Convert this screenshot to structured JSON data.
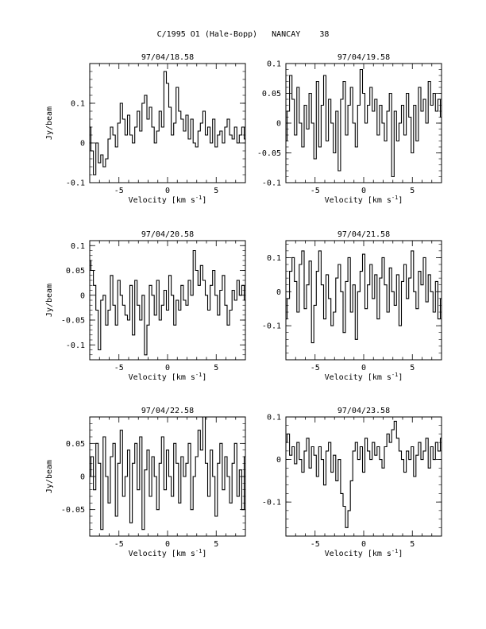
{
  "page_title": "C/1995 O1 (Hale-Bopp)   NANCAY    38",
  "chart_data": [
    {
      "type": "line",
      "title": "97/04/18.58",
      "xlabel": "Velocity [km s-1]",
      "ylabel": "Jy/beam",
      "xlim": [
        -8,
        8
      ],
      "ylim": [
        -0.1,
        0.2
      ],
      "xticks": [
        -5,
        0,
        5
      ],
      "xtick_labels": [
        "-5",
        "0",
        "5"
      ],
      "yticks": [
        -0.1,
        0,
        0.1
      ],
      "ytick_labels": [
        "-0.1",
        "0",
        "0.1"
      ],
      "grid": false,
      "series": [
        {
          "x": [
            -8,
            -7.75,
            -7.5,
            -7.25,
            -7,
            -6.75,
            -6.5,
            -6.25,
            -6,
            -5.75,
            -5.5,
            -5.25,
            -5,
            -4.75,
            -4.5,
            -4.25,
            -4,
            -3.75,
            -3.5,
            -3.25,
            -3,
            -2.75,
            -2.5,
            -2.25,
            -2,
            -1.75,
            -1.5,
            -1.25,
            -1,
            -0.75,
            -0.5,
            -0.25,
            0,
            0.25,
            0.5,
            0.75,
            1,
            1.25,
            1.5,
            1.75,
            2,
            2.25,
            2.5,
            2.75,
            3,
            3.25,
            3.5,
            3.75,
            4,
            4.25,
            4.5,
            4.75,
            5,
            5.25,
            5.5,
            5.75,
            6,
            6.25,
            6.5,
            6.75,
            7,
            7.25,
            7.5,
            7.75,
            8
          ],
          "y": [
            0.04,
            -0.02,
            -0.08,
            0.0,
            -0.05,
            -0.03,
            -0.06,
            -0.04,
            0.01,
            0.04,
            0.02,
            -0.01,
            0.05,
            0.1,
            0.06,
            0.02,
            0.07,
            0.02,
            0.0,
            0.04,
            0.08,
            0.03,
            0.1,
            0.12,
            0.06,
            0.09,
            0.04,
            0.0,
            0.03,
            0.08,
            0.04,
            0.18,
            0.15,
            0.09,
            0.02,
            0.05,
            0.14,
            0.08,
            0.06,
            0.03,
            0.07,
            0.01,
            0.06,
            0.0,
            -0.01,
            0.03,
            0.05,
            0.08,
            0.02,
            0.04,
            0.0,
            0.06,
            -0.01,
            0.02,
            0.03,
            0.0,
            0.04,
            0.06,
            0.02,
            0.01,
            0.04,
            0.0,
            0.02,
            0.04,
            0.01
          ]
        }
      ]
    },
    {
      "type": "line",
      "title": "97/04/19.58",
      "xlabel": "Velocity [km s-1]",
      "ylabel": "",
      "xlim": [
        -8,
        8
      ],
      "ylim": [
        -0.1,
        0.1
      ],
      "xticks": [
        -5,
        0,
        5
      ],
      "xtick_labels": [
        "-5",
        "0",
        "5"
      ],
      "yticks": [
        -0.1,
        -0.05,
        0,
        0.05,
        0.1
      ],
      "ytick_labels": [
        "-0.1",
        "-0.05",
        "0",
        "0.05",
        "0.1"
      ],
      "grid": false,
      "series": [
        {
          "x": [
            -8,
            -7.75,
            -7.5,
            -7.25,
            -7,
            -6.75,
            -6.5,
            -6.25,
            -6,
            -5.75,
            -5.5,
            -5.25,
            -5,
            -4.75,
            -4.5,
            -4.25,
            -4,
            -3.75,
            -3.5,
            -3.25,
            -3,
            -2.75,
            -2.5,
            -2.25,
            -2,
            -1.75,
            -1.5,
            -1.25,
            -1,
            -0.75,
            -0.5,
            -0.25,
            0,
            0.25,
            0.5,
            0.75,
            1,
            1.25,
            1.5,
            1.75,
            2,
            2.25,
            2.5,
            2.75,
            3,
            3.25,
            3.5,
            3.75,
            4,
            4.25,
            4.5,
            4.75,
            5,
            5.25,
            5.5,
            5.75,
            6,
            6.25,
            6.5,
            6.75,
            7,
            7.25,
            7.5,
            7.75,
            8
          ],
          "y": [
            -0.03,
            0.02,
            0.08,
            0.04,
            -0.02,
            0.06,
            0.0,
            -0.04,
            0.03,
            -0.01,
            0.05,
            0.0,
            -0.06,
            0.07,
            -0.04,
            0.03,
            0.08,
            -0.03,
            0.04,
            0.0,
            -0.05,
            0.02,
            -0.08,
            0.04,
            0.07,
            -0.02,
            0.03,
            0.06,
            0.0,
            -0.04,
            0.03,
            0.09,
            0.05,
            0.0,
            0.03,
            0.06,
            0.02,
            0.04,
            -0.02,
            0.03,
            0.0,
            -0.03,
            0.02,
            0.05,
            -0.09,
            0.02,
            -0.03,
            0.0,
            0.03,
            -0.02,
            0.05,
            0.01,
            -0.05,
            0.03,
            -0.03,
            0.06,
            0.02,
            0.04,
            0.0,
            0.07,
            0.03,
            0.05,
            0.02,
            0.04,
            0.01
          ]
        }
      ]
    },
    {
      "type": "line",
      "title": "97/04/20.58",
      "xlabel": "Velocity [km s-1]",
      "ylabel": "Jy/beam",
      "xlim": [
        -8,
        8
      ],
      "ylim": [
        -0.13,
        0.11
      ],
      "xticks": [
        -5,
        0,
        5
      ],
      "xtick_labels": [
        "-5",
        "0",
        "5"
      ],
      "yticks": [
        -0.1,
        -0.05,
        0,
        0.05,
        0.1
      ],
      "ytick_labels": [
        "-0.1",
        "-0.05",
        "0",
        "0.05",
        "0.1"
      ],
      "grid": false,
      "series": [
        {
          "x": [
            -8,
            -7.75,
            -7.5,
            -7.25,
            -7,
            -6.75,
            -6.5,
            -6.25,
            -6,
            -5.75,
            -5.5,
            -5.25,
            -5,
            -4.75,
            -4.5,
            -4.25,
            -4,
            -3.75,
            -3.5,
            -3.25,
            -3,
            -2.75,
            -2.5,
            -2.25,
            -2,
            -1.75,
            -1.5,
            -1.25,
            -1,
            -0.75,
            -0.5,
            -0.25,
            0,
            0.25,
            0.5,
            0.75,
            1,
            1.25,
            1.5,
            1.75,
            2,
            2.25,
            2.5,
            2.75,
            3,
            3.25,
            3.5,
            3.75,
            4,
            4.25,
            4.5,
            4.75,
            5,
            5.25,
            5.5,
            5.75,
            6,
            6.25,
            6.5,
            6.75,
            7,
            7.25,
            7.5,
            7.75,
            8
          ],
          "y": [
            0.07,
            0.05,
            0.02,
            -0.03,
            -0.11,
            -0.01,
            0.0,
            -0.06,
            -0.03,
            0.04,
            -0.02,
            -0.06,
            0.03,
            0.0,
            -0.02,
            -0.04,
            -0.05,
            0.02,
            -0.08,
            0.03,
            -0.02,
            -0.05,
            0.0,
            -0.12,
            -0.06,
            0.02,
            0.0,
            -0.04,
            0.03,
            -0.05,
            -0.02,
            0.01,
            -0.03,
            0.04,
            0.0,
            -0.06,
            -0.01,
            -0.03,
            0.02,
            -0.01,
            -0.02,
            0.03,
            0.0,
            0.09,
            0.05,
            0.02,
            0.06,
            0.03,
            0.0,
            -0.03,
            0.02,
            0.05,
            0.0,
            -0.04,
            0.01,
            0.04,
            -0.02,
            -0.06,
            -0.03,
            0.01,
            -0.01,
            0.03,
            0.0,
            0.02,
            -0.01
          ]
        }
      ]
    },
    {
      "type": "line",
      "title": "97/04/21.58",
      "xlabel": "Velocity [km s-1]",
      "ylabel": "",
      "xlim": [
        -8,
        8
      ],
      "ylim": [
        -0.2,
        0.15
      ],
      "xticks": [
        -5,
        0,
        5
      ],
      "xtick_labels": [
        "-5",
        "0",
        "5"
      ],
      "yticks": [
        -0.1,
        0,
        0.1
      ],
      "ytick_labels": [
        "-0.1",
        "0",
        "0.1"
      ],
      "grid": false,
      "series": [
        {
          "x": [
            -8,
            -7.75,
            -7.5,
            -7.25,
            -7,
            -6.75,
            -6.5,
            -6.25,
            -6,
            -5.75,
            -5.5,
            -5.25,
            -5,
            -4.75,
            -4.5,
            -4.25,
            -4,
            -3.75,
            -3.5,
            -3.25,
            -3,
            -2.75,
            -2.5,
            -2.25,
            -2,
            -1.75,
            -1.5,
            -1.25,
            -1,
            -0.75,
            -0.5,
            -0.25,
            0,
            0.25,
            0.5,
            0.75,
            1,
            1.25,
            1.5,
            1.75,
            2,
            2.25,
            2.5,
            2.75,
            3,
            3.25,
            3.5,
            3.75,
            4,
            4.25,
            4.5,
            4.75,
            5,
            5.25,
            5.5,
            5.75,
            6,
            6.25,
            6.5,
            6.75,
            7,
            7.25,
            7.5,
            7.75,
            8
          ],
          "y": [
            -0.08,
            -0.02,
            0.06,
            0.1,
            0.03,
            -0.06,
            0.08,
            0.12,
            -0.05,
            0.02,
            0.09,
            -0.15,
            -0.04,
            0.06,
            0.12,
            0.02,
            -0.08,
            0.05,
            -0.02,
            -0.1,
            -0.06,
            0.04,
            0.08,
            0.0,
            -0.12,
            0.03,
            0.1,
            -0.06,
            0.02,
            -0.14,
            0.0,
            0.06,
            0.11,
            -0.05,
            0.02,
            0.08,
            -0.02,
            0.05,
            -0.08,
            0.04,
            0.1,
            0.02,
            -0.06,
            0.07,
            0.0,
            -0.04,
            0.05,
            -0.1,
            0.03,
            0.08,
            -0.02,
            0.04,
            0.12,
            0.0,
            -0.05,
            0.06,
            0.02,
            0.1,
            -0.03,
            0.05,
            0.0,
            -0.06,
            0.03,
            -0.08,
            -0.02
          ]
        }
      ]
    },
    {
      "type": "line",
      "title": "97/04/22.58",
      "xlabel": "Velocity [km s-1]",
      "ylabel": "Jy/beam",
      "xlim": [
        -8,
        8
      ],
      "ylim": [
        -0.09,
        0.09
      ],
      "xticks": [
        -5,
        0,
        5
      ],
      "xtick_labels": [
        "-5",
        "0",
        "5"
      ],
      "yticks": [
        -0.05,
        0,
        0.05
      ],
      "ytick_labels": [
        "-0.05",
        "0",
        "0.05"
      ],
      "grid": false,
      "series": [
        {
          "x": [
            -8,
            -7.75,
            -7.5,
            -7.25,
            -7,
            -6.75,
            -6.5,
            -6.25,
            -6,
            -5.75,
            -5.5,
            -5.25,
            -5,
            -4.75,
            -4.5,
            -4.25,
            -4,
            -3.75,
            -3.5,
            -3.25,
            -3,
            -2.75,
            -2.5,
            -2.25,
            -2,
            -1.75,
            -1.5,
            -1.25,
            -1,
            -0.75,
            -0.5,
            -0.25,
            0,
            0.25,
            0.5,
            0.75,
            1,
            1.25,
            1.5,
            1.75,
            2,
            2.25,
            2.5,
            2.75,
            3,
            3.25,
            3.5,
            3.75,
            4,
            4.25,
            4.5,
            4.75,
            5,
            5.25,
            5.5,
            5.75,
            6,
            6.25,
            6.5,
            6.75,
            7,
            7.25,
            7.5,
            7.75,
            8
          ],
          "y": [
            0.0,
            0.03,
            -0.02,
            0.05,
            0.02,
            -0.08,
            0.06,
            0.0,
            -0.04,
            0.03,
            0.05,
            -0.06,
            0.02,
            0.07,
            -0.03,
            0.0,
            0.04,
            -0.07,
            0.02,
            0.05,
            -0.02,
            0.06,
            -0.08,
            0.01,
            0.04,
            -0.03,
            0.03,
            0.0,
            -0.05,
            0.02,
            0.06,
            -0.02,
            0.04,
            0.0,
            -0.03,
            0.05,
            0.02,
            -0.04,
            0.03,
            0.0,
            0.02,
            0.05,
            -0.05,
            0.0,
            0.03,
            0.07,
            0.04,
            0.09,
            0.02,
            -0.03,
            0.04,
            0.0,
            -0.06,
            0.02,
            0.05,
            -0.02,
            0.03,
            0.0,
            -0.04,
            0.02,
            0.05,
            -0.03,
            0.01,
            -0.05,
            0.03
          ]
        }
      ]
    },
    {
      "type": "line",
      "title": "97/04/23.58",
      "xlabel": "Velocity [km s-1]",
      "ylabel": "",
      "xlim": [
        -8,
        8
      ],
      "ylim": [
        -0.18,
        0.1
      ],
      "xticks": [
        -5,
        0,
        5
      ],
      "xtick_labels": [
        "-5",
        "0",
        "5"
      ],
      "yticks": [
        -0.1,
        0,
        0.1
      ],
      "ytick_labels": [
        "-0.1",
        "0",
        "0.1"
      ],
      "grid": false,
      "series": [
        {
          "x": [
            -8,
            -7.75,
            -7.5,
            -7.25,
            -7,
            -6.75,
            -6.5,
            -6.25,
            -6,
            -5.75,
            -5.5,
            -5.25,
            -5,
            -4.75,
            -4.5,
            -4.25,
            -4,
            -3.75,
            -3.5,
            -3.25,
            -3,
            -2.75,
            -2.5,
            -2.25,
            -2,
            -1.75,
            -1.5,
            -1.25,
            -1,
            -0.75,
            -0.5,
            -0.25,
            0,
            0.25,
            0.5,
            0.75,
            1,
            1.25,
            1.5,
            1.75,
            2,
            2.25,
            2.5,
            2.75,
            3,
            3.25,
            3.5,
            3.75,
            4,
            4.25,
            4.5,
            4.75,
            5,
            5.25,
            5.5,
            5.75,
            6,
            6.25,
            6.5,
            6.75,
            7,
            7.25,
            7.5,
            7.75,
            8
          ],
          "y": [
            0.04,
            0.06,
            0.01,
            0.03,
            -0.01,
            0.04,
            0.0,
            -0.03,
            0.02,
            0.05,
            -0.02,
            0.03,
            0.01,
            -0.04,
            0.03,
            0.0,
            -0.06,
            0.02,
            0.04,
            -0.03,
            0.01,
            -0.05,
            0.0,
            -0.08,
            -0.11,
            -0.16,
            -0.12,
            -0.05,
            0.02,
            0.04,
            0.0,
            0.03,
            -0.03,
            0.05,
            0.02,
            0.0,
            0.04,
            0.01,
            0.03,
            0.0,
            -0.02,
            0.03,
            0.06,
            0.04,
            0.07,
            0.09,
            0.05,
            0.02,
            0.0,
            -0.03,
            0.02,
            0.0,
            0.03,
            -0.04,
            0.01,
            0.04,
            0.0,
            0.02,
            0.05,
            -0.02,
            0.03,
            0.0,
            0.04,
            0.02,
            0.05
          ]
        }
      ]
    }
  ]
}
